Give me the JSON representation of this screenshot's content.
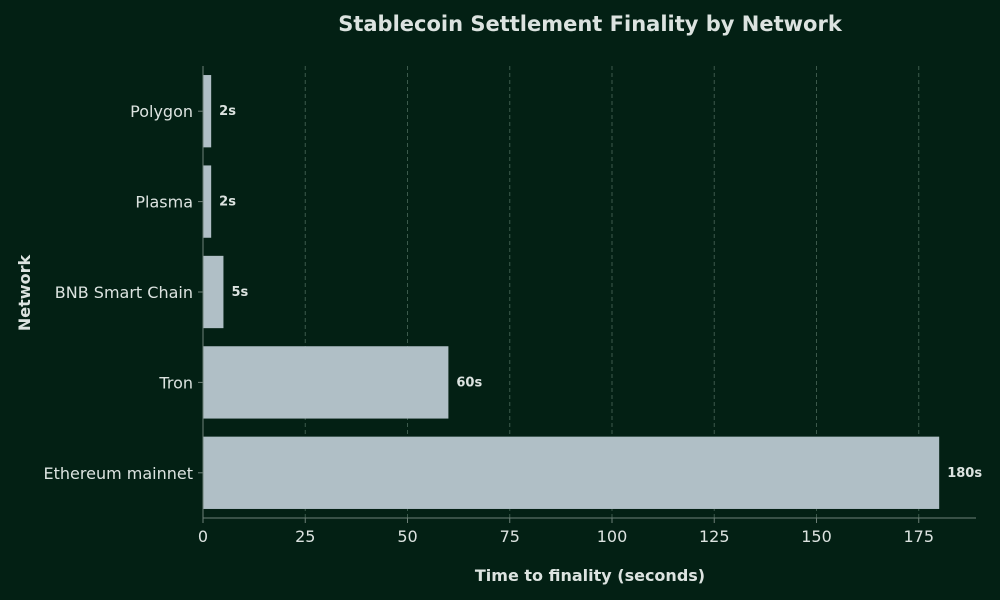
{
  "colors": {
    "background": "#032014",
    "bar": "#b0bfc6",
    "text": "#dce3e0",
    "grid": "#3d5a4c",
    "axis": "#6d7f77"
  },
  "chart_data": {
    "type": "bar",
    "orientation": "horizontal",
    "title": "Stablecoin Settlement Finality by Network",
    "xlabel": "Time to finality (seconds)",
    "ylabel": "Network",
    "categories": [
      "Polygon",
      "Plasma",
      "BNB Smart Chain",
      "Tron",
      "Ethereum mainnet"
    ],
    "values": [
      2,
      2,
      5,
      60,
      180
    ],
    "value_labels": [
      "2s",
      "2s",
      "5s",
      "60s",
      "180s"
    ],
    "xlim": [
      0,
      189
    ],
    "xticks": [
      0,
      25,
      50,
      75,
      100,
      125,
      150,
      175
    ],
    "grid": "x, dashed",
    "legend": "none"
  }
}
